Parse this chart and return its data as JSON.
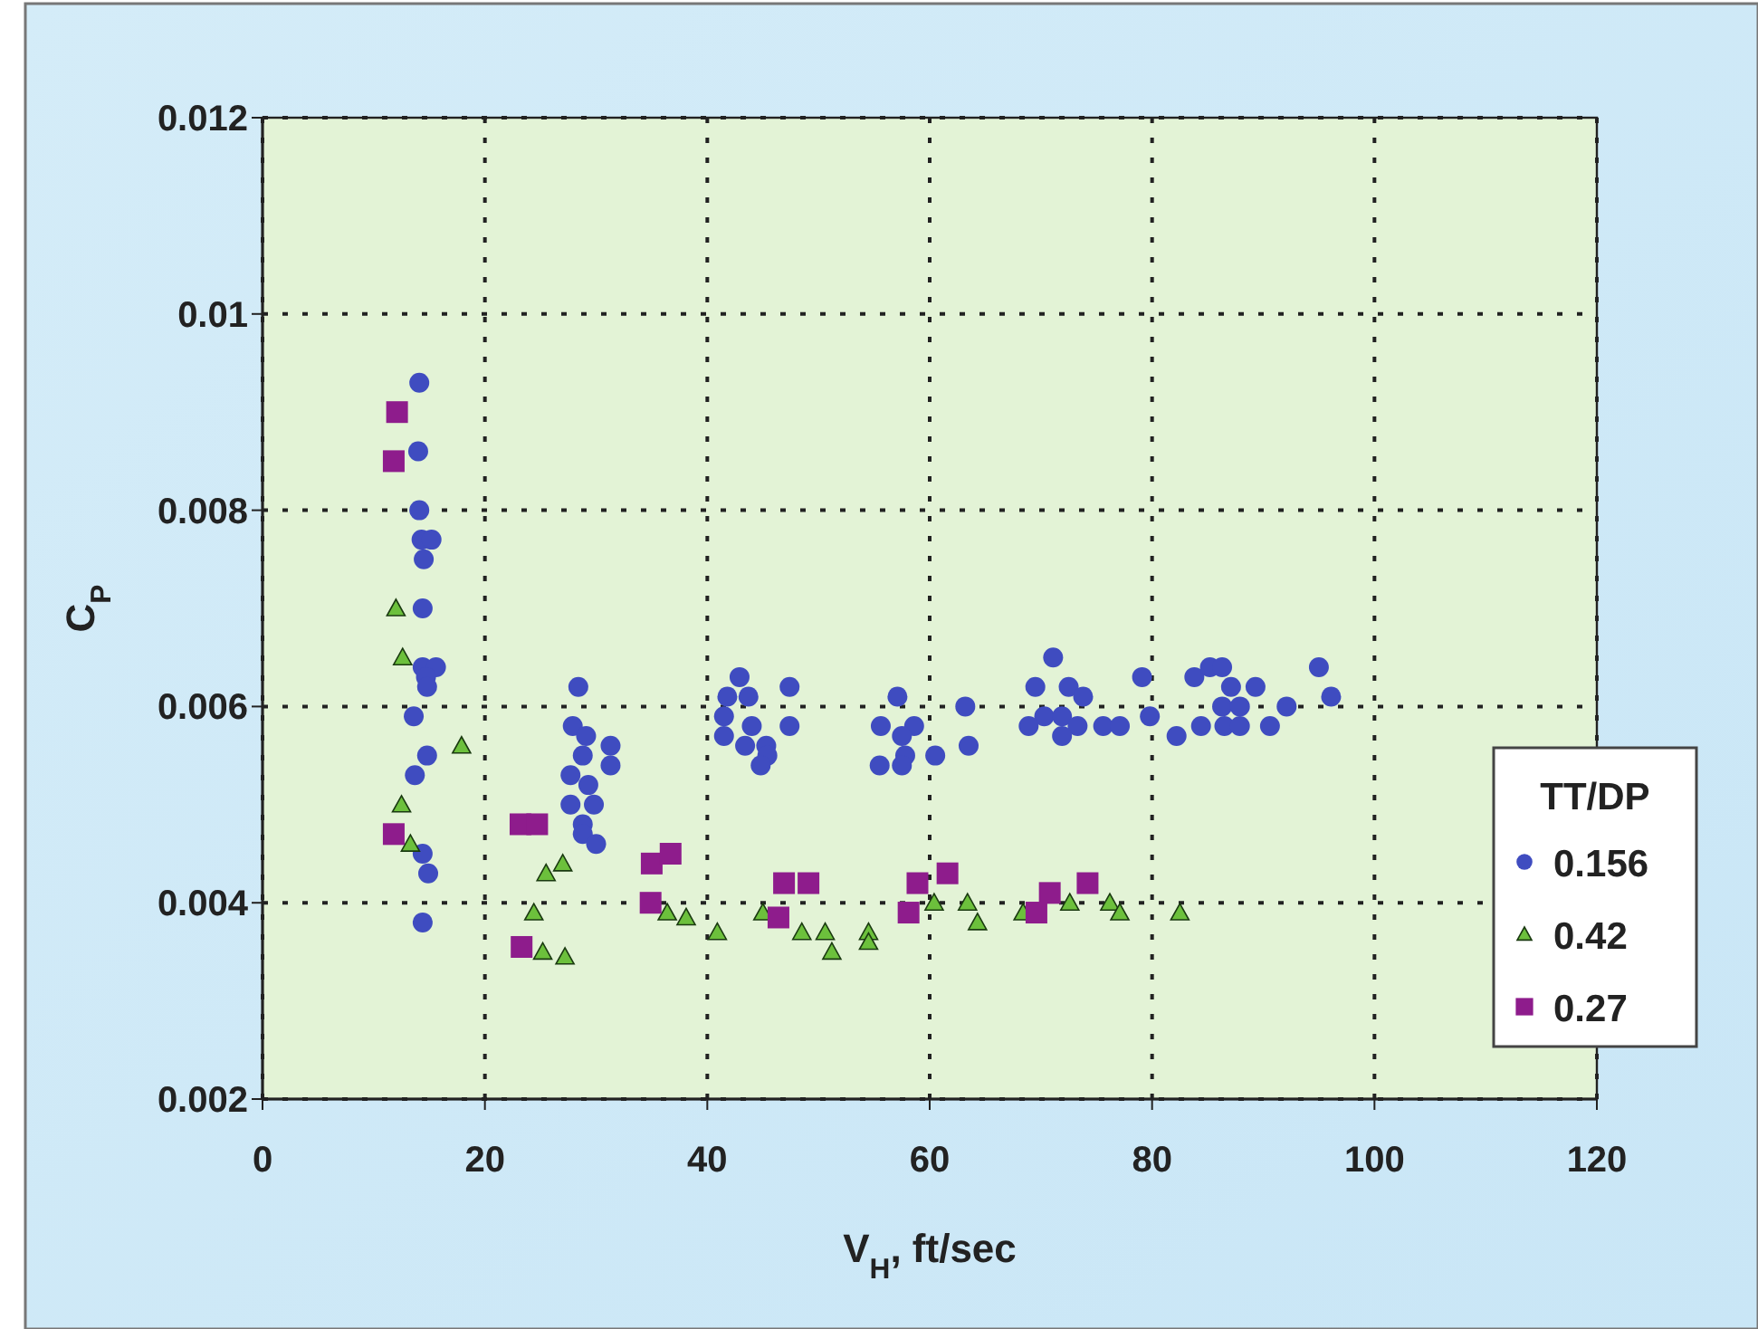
{
  "chart_data": {
    "type": "scatter",
    "xlabel": "V$_{H}$, ft/sec",
    "ylabel": "C$_{P}$",
    "legend_title": "TT/DP",
    "xlim": [
      0,
      120
    ],
    "ylim": [
      0.002,
      0.012
    ],
    "xticks": [
      0,
      20,
      40,
      60,
      80,
      100,
      120
    ],
    "yticks": [
      0.002,
      0.004,
      0.006,
      0.008,
      0.01,
      0.012
    ],
    "grid": true,
    "legend": "right",
    "series": [
      {
        "name": "0.156",
        "color": "#3f4cc0",
        "marker": "circle",
        "x": [
          14.1,
          14.0,
          14.1,
          14.3,
          15.2,
          14.5,
          14.4,
          14.4,
          15.6,
          14.7,
          14.8,
          13.6,
          14.8,
          13.7,
          14.4,
          14.9,
          14.4,
          28.4,
          27.9,
          29.1,
          28.8,
          31.3,
          31.3,
          27.7,
          29.3,
          29.8,
          27.7,
          28.8,
          28.8,
          30.0,
          42.9,
          41.8,
          43.7,
          47.4,
          41.5,
          44.0,
          47.4,
          41.5,
          43.4,
          45.3,
          45.4,
          44.8,
          57.1,
          58.6,
          55.6,
          57.5,
          57.8,
          60.5,
          55.5,
          57.5,
          63.2,
          63.5,
          71.1,
          69.5,
          72.5,
          73.8,
          70.3,
          71.9,
          73.3,
          68.9,
          71.9,
          75.6,
          77.1,
          79.1,
          79.8,
          82.2,
          83.8,
          85.2,
          86.3,
          87.1,
          89.3,
          84.4,
          86.3,
          87.9,
          86.5,
          87.9,
          90.6,
          92.1,
          95.0,
          96.1
        ],
        "values": [
          0.0093,
          0.0086,
          0.008,
          0.0077,
          0.0077,
          0.0075,
          0.007,
          0.0064,
          0.0064,
          0.0063,
          0.0062,
          0.0059,
          0.0055,
          0.0053,
          0.0045,
          0.0043,
          0.0038,
          0.0062,
          0.0058,
          0.0057,
          0.0055,
          0.0056,
          0.0054,
          0.0053,
          0.0052,
          0.005,
          0.005,
          0.0048,
          0.0047,
          0.0046,
          0.0063,
          0.0061,
          0.0061,
          0.0062,
          0.0059,
          0.0058,
          0.0058,
          0.0057,
          0.0056,
          0.0056,
          0.0055,
          0.0054,
          0.0061,
          0.0058,
          0.0058,
          0.0057,
          0.0055,
          0.0055,
          0.0054,
          0.0054,
          0.006,
          0.0056,
          0.0065,
          0.0062,
          0.0062,
          0.0061,
          0.0059,
          0.0059,
          0.0058,
          0.0058,
          0.0057,
          0.0058,
          0.0058,
          0.0063,
          0.0059,
          0.0057,
          0.0063,
          0.0064,
          0.0064,
          0.0062,
          0.0062,
          0.0058,
          0.006,
          0.006,
          0.0058,
          0.0058,
          0.0058,
          0.006,
          0.0064,
          0.0061
        ]
      },
      {
        "name": "0.42",
        "color": "#6cc03c",
        "marker": "triangle",
        "x": [
          12.0,
          12.6,
          17.9,
          12.5,
          13.3,
          25.5,
          27.0,
          24.4,
          25.2,
          27.2,
          36.4,
          38.1,
          40.9,
          45.0,
          48.5,
          50.6,
          51.2,
          54.5,
          54.5,
          60.4,
          63.4,
          64.3,
          68.4,
          72.6,
          76.2,
          77.1,
          82.5
        ],
        "values": [
          0.007,
          0.0065,
          0.0056,
          0.005,
          0.0046,
          0.0043,
          0.0044,
          0.0039,
          0.0035,
          0.00345,
          0.0039,
          0.00385,
          0.0037,
          0.0039,
          0.0037,
          0.0037,
          0.0035,
          0.0037,
          0.0036,
          0.004,
          0.004,
          0.0038,
          0.0039,
          0.004,
          0.004,
          0.0039,
          0.0039
        ]
      },
      {
        "name": "0.27",
        "color": "#8e1c8c",
        "marker": "square",
        "x": [
          12.1,
          11.8,
          11.8,
          23.2,
          24.7,
          23.3,
          35.0,
          36.7,
          34.9,
          46.9,
          49.1,
          46.4,
          58.9,
          61.6,
          58.1,
          70.8,
          69.6,
          74.2
        ],
        "values": [
          0.009,
          0.0085,
          0.0047,
          0.0048,
          0.0048,
          0.00355,
          0.0044,
          0.0045,
          0.004,
          0.0042,
          0.0042,
          0.00385,
          0.0042,
          0.0043,
          0.0039,
          0.0041,
          0.0039,
          0.0042
        ]
      }
    ]
  }
}
